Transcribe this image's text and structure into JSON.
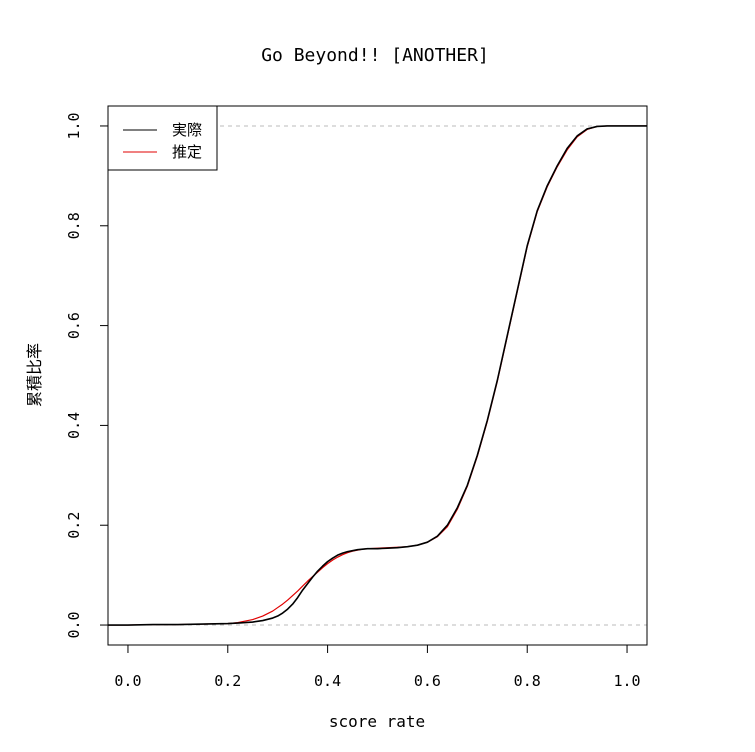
{
  "chart_data": {
    "type": "line",
    "title": "Go Beyond!! [ANOTHER]",
    "xlabel": "score rate",
    "ylabel": "累積比率",
    "xlim": [
      -0.04,
      1.04
    ],
    "ylim": [
      -0.04,
      1.04
    ],
    "xticks": [
      "0.0",
      "0.2",
      "0.4",
      "0.6",
      "0.8",
      "1.0"
    ],
    "yticks": [
      "0.0",
      "0.2",
      "0.4",
      "0.6",
      "0.8",
      "1.0"
    ],
    "reference_lines": [
      0,
      1
    ],
    "legend_position": "top-left",
    "colors": {
      "actual": "#000000",
      "estimate": "#e00000",
      "reference": "#bbbbbb"
    },
    "series": [
      {
        "name": "実際",
        "x": [
          -0.04,
          0.0,
          0.05,
          0.1,
          0.15,
          0.2,
          0.22,
          0.25,
          0.27,
          0.29,
          0.3,
          0.31,
          0.32,
          0.33,
          0.34,
          0.35,
          0.36,
          0.37,
          0.38,
          0.39,
          0.4,
          0.41,
          0.42,
          0.43,
          0.44,
          0.45,
          0.46,
          0.47,
          0.48,
          0.5,
          0.52,
          0.54,
          0.56,
          0.58,
          0.6,
          0.62,
          0.64,
          0.66,
          0.68,
          0.7,
          0.72,
          0.74,
          0.76,
          0.78,
          0.8,
          0.82,
          0.84,
          0.86,
          0.88,
          0.9,
          0.92,
          0.94,
          0.96,
          1.0,
          1.04
        ],
        "y": [
          0.0,
          0.0,
          0.001,
          0.001,
          0.002,
          0.003,
          0.004,
          0.006,
          0.009,
          0.014,
          0.018,
          0.024,
          0.032,
          0.042,
          0.055,
          0.07,
          0.083,
          0.096,
          0.108,
          0.118,
          0.127,
          0.134,
          0.14,
          0.144,
          0.147,
          0.149,
          0.151,
          0.152,
          0.153,
          0.153,
          0.154,
          0.155,
          0.157,
          0.16,
          0.166,
          0.178,
          0.2,
          0.235,
          0.28,
          0.34,
          0.41,
          0.49,
          0.58,
          0.67,
          0.76,
          0.83,
          0.88,
          0.92,
          0.955,
          0.98,
          0.994,
          0.999,
          1.0,
          1.0,
          1.0
        ]
      },
      {
        "name": "推定",
        "x": [
          -0.04,
          0.0,
          0.05,
          0.1,
          0.15,
          0.2,
          0.22,
          0.25,
          0.27,
          0.29,
          0.3,
          0.31,
          0.32,
          0.33,
          0.34,
          0.35,
          0.36,
          0.37,
          0.38,
          0.39,
          0.4,
          0.41,
          0.42,
          0.43,
          0.44,
          0.45,
          0.46,
          0.47,
          0.48,
          0.5,
          0.52,
          0.54,
          0.56,
          0.58,
          0.6,
          0.62,
          0.64,
          0.66,
          0.68,
          0.7,
          0.72,
          0.74,
          0.76,
          0.78,
          0.8,
          0.82,
          0.84,
          0.86,
          0.88,
          0.9,
          0.92,
          0.94,
          0.96,
          1.0,
          1.04
        ],
        "y": [
          0.0,
          0.0,
          0.001,
          0.001,
          0.002,
          0.003,
          0.005,
          0.011,
          0.018,
          0.028,
          0.035,
          0.042,
          0.05,
          0.059,
          0.068,
          0.078,
          0.088,
          0.097,
          0.106,
          0.115,
          0.123,
          0.13,
          0.136,
          0.141,
          0.145,
          0.148,
          0.15,
          0.152,
          0.153,
          0.154,
          0.155,
          0.156,
          0.157,
          0.16,
          0.166,
          0.177,
          0.197,
          0.232,
          0.278,
          0.338,
          0.408,
          0.488,
          0.578,
          0.668,
          0.758,
          0.828,
          0.878,
          0.918,
          0.952,
          0.978,
          0.993,
          0.999,
          1.0,
          1.0,
          1.0
        ]
      }
    ]
  }
}
